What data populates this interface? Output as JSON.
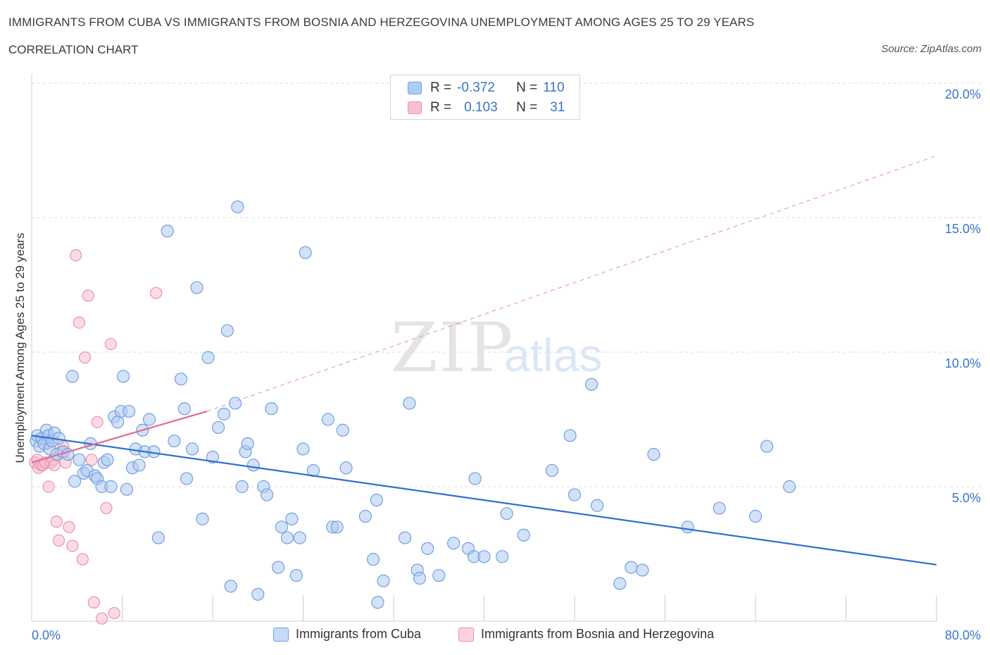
{
  "header": {
    "title": "IMMIGRANTS FROM CUBA VS IMMIGRANTS FROM BOSNIA AND HERZEGOVINA UNEMPLOYMENT AMONG AGES 25 TO 29 YEARS",
    "subtitle": "CORRELATION CHART",
    "source": "Source: ZipAtlas.com"
  },
  "watermark": {
    "zip": "ZIP",
    "atlas": "atlas"
  },
  "legend": {
    "rows": [
      {
        "r_label": "R =",
        "r_value": "-0.372",
        "n_label": "N =",
        "n_value": "110"
      },
      {
        "r_label": "R =",
        "r_value": "0.103",
        "n_label": "N =",
        "n_value": "31"
      }
    ]
  },
  "colors": {
    "cuba_fill": "#aecbf0",
    "cuba_stroke": "#6f9fe0",
    "cuba_line": "#2f6fd0",
    "bosnia_fill": "#f7c0d0",
    "bosnia_stroke": "#ec8fab",
    "bosnia_line": "#e06a93",
    "axis_text": "#3b73c6",
    "grid": "#dddddd"
  },
  "chart_data": {
    "type": "scatter",
    "title": "IMMIGRANTS FROM CUBA VS IMMIGRANTS FROM BOSNIA AND HERZEGOVINA UNEMPLOYMENT AMONG AGES 25 TO 29 YEARS",
    "xlabel": "",
    "ylabel": "Unemployment Among Ages 25 to 29 years",
    "xlim": [
      0,
      80
    ],
    "ylim": [
      0,
      20
    ],
    "x_tick_labels": [
      "0.0%",
      "80.0%"
    ],
    "y_ticks": [
      5,
      10,
      15,
      20
    ],
    "y_tick_labels": [
      "5.0%",
      "10.0%",
      "15.0%",
      "20.0%"
    ],
    "grid": true,
    "legend_position": "bottom",
    "series": [
      {
        "name": "Immigrants from Cuba",
        "trend": {
          "x": [
            0,
            80
          ],
          "y": [
            6.9,
            2.1
          ]
        },
        "points": [
          [
            0.4,
            6.7
          ],
          [
            0.5,
            6.9
          ],
          [
            0.7,
            6.5
          ],
          [
            0.9,
            6.8
          ],
          [
            1.1,
            6.6
          ],
          [
            1.3,
            7.1
          ],
          [
            1.5,
            6.9
          ],
          [
            1.6,
            6.4
          ],
          [
            1.8,
            6.7
          ],
          [
            2.0,
            7.0
          ],
          [
            2.2,
            6.2
          ],
          [
            2.4,
            6.8
          ],
          [
            2.8,
            6.3
          ],
          [
            3.2,
            6.2
          ],
          [
            3.6,
            9.1
          ],
          [
            3.8,
            5.2
          ],
          [
            4.2,
            6.0
          ],
          [
            4.6,
            5.5
          ],
          [
            4.9,
            5.6
          ],
          [
            5.2,
            6.6
          ],
          [
            5.6,
            5.4
          ],
          [
            5.8,
            5.3
          ],
          [
            6.2,
            5.0
          ],
          [
            6.4,
            5.9
          ],
          [
            6.7,
            6.0
          ],
          [
            7.0,
            5.0
          ],
          [
            7.3,
            7.6
          ],
          [
            7.6,
            7.4
          ],
          [
            7.9,
            7.8
          ],
          [
            8.1,
            9.1
          ],
          [
            8.4,
            4.9
          ],
          [
            8.6,
            7.8
          ],
          [
            8.9,
            5.7
          ],
          [
            9.2,
            6.4
          ],
          [
            9.5,
            5.8
          ],
          [
            9.8,
            7.1
          ],
          [
            10.0,
            6.3
          ],
          [
            10.4,
            7.5
          ],
          [
            10.8,
            6.3
          ],
          [
            11.2,
            3.1
          ],
          [
            12.0,
            14.5
          ],
          [
            12.6,
            6.7
          ],
          [
            13.2,
            9.0
          ],
          [
            13.5,
            7.9
          ],
          [
            13.7,
            5.3
          ],
          [
            14.2,
            6.4
          ],
          [
            14.6,
            12.4
          ],
          [
            15.1,
            3.8
          ],
          [
            15.6,
            9.8
          ],
          [
            16.0,
            6.1
          ],
          [
            16.5,
            7.2
          ],
          [
            17.0,
            7.7
          ],
          [
            17.3,
            10.8
          ],
          [
            17.6,
            1.3
          ],
          [
            18.0,
            8.1
          ],
          [
            18.2,
            15.4
          ],
          [
            18.6,
            5.0
          ],
          [
            18.9,
            6.3
          ],
          [
            19.1,
            6.6
          ],
          [
            19.6,
            5.8
          ],
          [
            20.0,
            1.0
          ],
          [
            20.5,
            5.0
          ],
          [
            20.8,
            4.7
          ],
          [
            21.2,
            7.9
          ],
          [
            21.8,
            2.0
          ],
          [
            22.1,
            3.5
          ],
          [
            22.6,
            3.1
          ],
          [
            23.0,
            3.8
          ],
          [
            23.4,
            1.7
          ],
          [
            23.7,
            3.1
          ],
          [
            24.0,
            6.4
          ],
          [
            24.2,
            13.7
          ],
          [
            24.9,
            5.6
          ],
          [
            26.2,
            7.5
          ],
          [
            26.6,
            3.5
          ],
          [
            27.0,
            3.5
          ],
          [
            27.5,
            7.1
          ],
          [
            27.8,
            5.7
          ],
          [
            29.5,
            3.9
          ],
          [
            30.2,
            2.3
          ],
          [
            30.5,
            4.5
          ],
          [
            30.6,
            0.7
          ],
          [
            31.1,
            1.5
          ],
          [
            33.0,
            3.1
          ],
          [
            33.4,
            8.1
          ],
          [
            34.1,
            1.9
          ],
          [
            34.3,
            1.6
          ],
          [
            35.0,
            2.7
          ],
          [
            36.0,
            1.7
          ],
          [
            37.3,
            2.9
          ],
          [
            38.6,
            2.7
          ],
          [
            39.1,
            2.4
          ],
          [
            39.2,
            5.3
          ],
          [
            40.0,
            2.4
          ],
          [
            41.6,
            2.4
          ],
          [
            42.0,
            4.0
          ],
          [
            43.5,
            3.2
          ],
          [
            46.0,
            5.6
          ],
          [
            47.6,
            6.9
          ],
          [
            48.0,
            4.7
          ],
          [
            49.5,
            8.8
          ],
          [
            50.0,
            4.3
          ],
          [
            52.0,
            1.4
          ],
          [
            53.0,
            2.0
          ],
          [
            54.0,
            1.9
          ],
          [
            55.0,
            6.2
          ],
          [
            58.0,
            3.5
          ],
          [
            60.8,
            4.2
          ],
          [
            64.0,
            3.9
          ],
          [
            65.0,
            6.5
          ],
          [
            67.0,
            5.0
          ]
        ]
      },
      {
        "name": "Immigrants from Bosnia and Herzegovina",
        "trend": {
          "x": [
            0,
            15.5
          ],
          "y": [
            5.9,
            7.8
          ]
        },
        "trend_extended": {
          "x": [
            15.5,
            80
          ],
          "y": [
            7.8,
            17.3
          ]
        },
        "points": [
          [
            0.3,
            5.9
          ],
          [
            0.5,
            6.0
          ],
          [
            0.6,
            5.7
          ],
          [
            0.8,
            5.8
          ],
          [
            1.0,
            5.8
          ],
          [
            1.2,
            5.9
          ],
          [
            1.4,
            6.6
          ],
          [
            1.5,
            5.0
          ],
          [
            1.7,
            5.9
          ],
          [
            1.9,
            6.0
          ],
          [
            2.0,
            5.8
          ],
          [
            2.2,
            3.7
          ],
          [
            2.4,
            3.0
          ],
          [
            2.6,
            6.3
          ],
          [
            2.8,
            6.5
          ],
          [
            3.0,
            5.9
          ],
          [
            3.3,
            3.5
          ],
          [
            3.6,
            2.8
          ],
          [
            3.9,
            13.6
          ],
          [
            4.2,
            11.1
          ],
          [
            4.5,
            2.3
          ],
          [
            4.7,
            9.8
          ],
          [
            5.0,
            12.1
          ],
          [
            5.3,
            6.0
          ],
          [
            5.5,
            0.7
          ],
          [
            5.8,
            7.4
          ],
          [
            6.2,
            0.1
          ],
          [
            6.6,
            4.2
          ],
          [
            7.0,
            10.3
          ],
          [
            7.3,
            0.3
          ],
          [
            11.0,
            12.2
          ]
        ]
      }
    ]
  },
  "bottom_legend": {
    "items": [
      {
        "label": "Immigrants from Cuba"
      },
      {
        "label": "Immigrants from Bosnia and Herzegovina"
      }
    ]
  }
}
